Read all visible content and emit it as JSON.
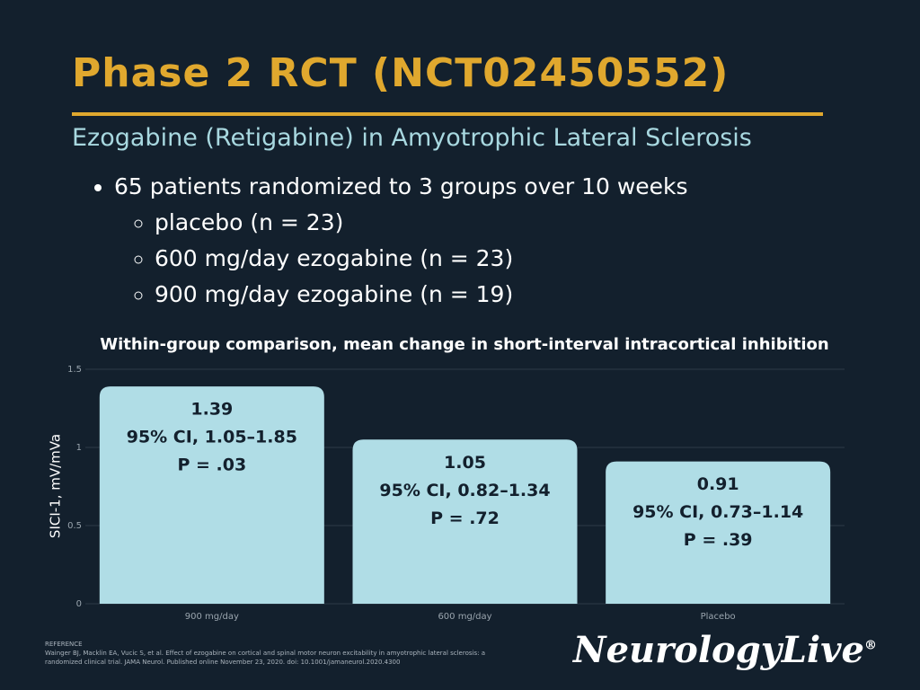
{
  "title": "Phase 2 RCT (NCT02450552)",
  "subtitle": "Ezogabine (Retigabine) in Amyotrophic Lateral Sclerosis",
  "bullets": [
    {
      "text": "65 patients randomized to 3 groups over 10 weeks",
      "items": [
        "placebo (n = 23)",
        "600 mg/day ezogabine (n = 23)",
        "900 mg/day ezogabine (n = 19)"
      ]
    }
  ],
  "chart_data": {
    "type": "bar",
    "title": "Within-group comparison, mean change in short-interval intracortical inhibition",
    "y_label": "SICI-1, mV/mVa",
    "categories": [
      "900 mg/day",
      "600 mg/day",
      "Placebo"
    ],
    "values": [
      1.39,
      1.05,
      0.91
    ],
    "ci_labels": [
      "95% CI, 1.05–1.85",
      "95% CI, 0.82–1.34",
      "95% CI, 0.73–1.14"
    ],
    "p_labels": [
      "P = .03",
      "P = .72",
      "P = .39"
    ],
    "color": "#b0dde6",
    "ylim": [
      0,
      1.5
    ],
    "yticks": [
      0,
      0.5,
      1,
      1.5
    ],
    "grid": true
  },
  "reference": {
    "heading": "REFERENCE",
    "text": "Wainger BJ, Macklin EA, Vucic S, et al. Effect of ezogabine on cortical and spinal motor neuron excitability in amyotrophic lateral sclerosis: a randomized clinical trial. JAMA Neurol. Published online November 23, 2020. doi: 10.1001/jamaneurol.2020.4300"
  },
  "logo": "NeurologyLive",
  "logo_mark": "®"
}
